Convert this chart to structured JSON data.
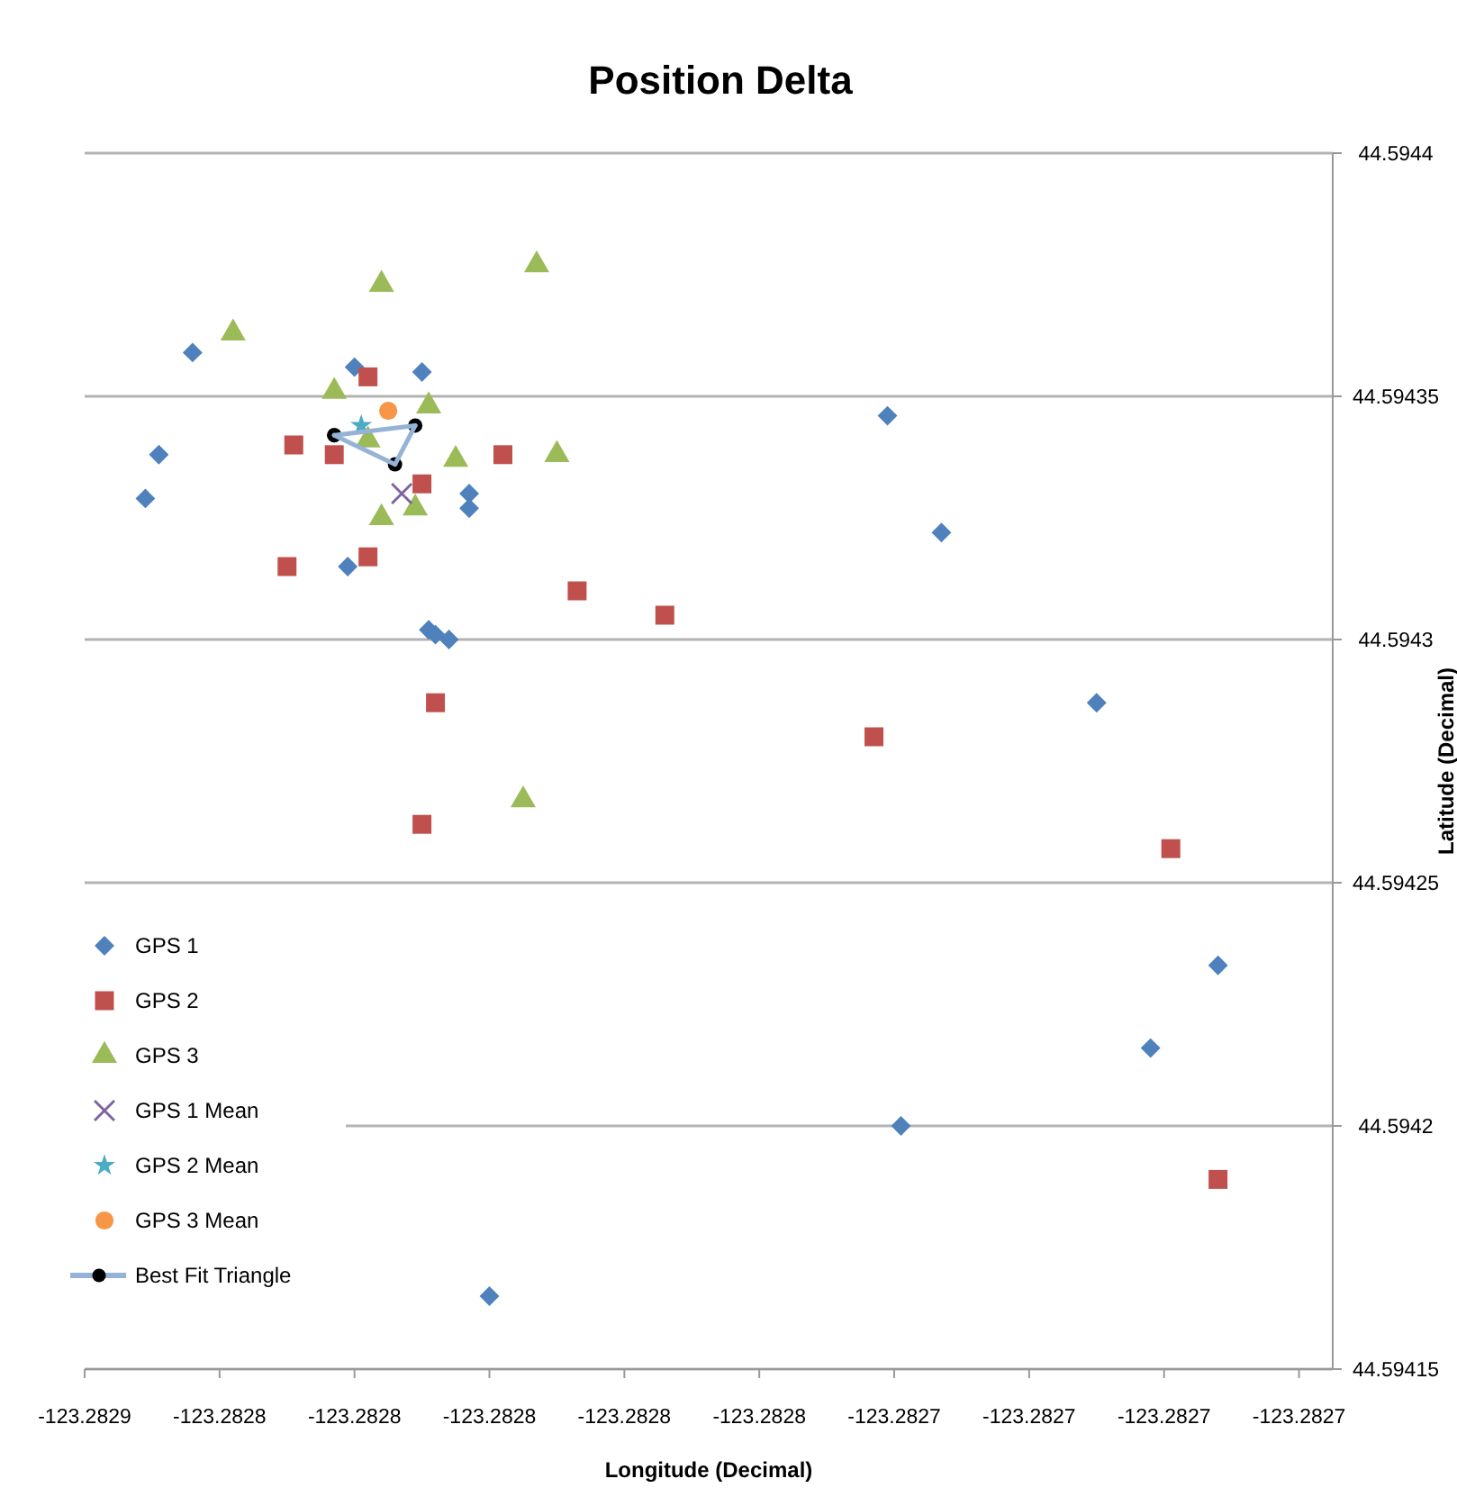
{
  "chart_data": {
    "type": "scatter",
    "title": "Position Delta",
    "xlabel": "Longitude (Decimal)",
    "ylabel": "Latitude (Decimal)",
    "xlim": [
      -123.28286,
      -123.282675
    ],
    "xticks": [
      {
        "value": -123.28286,
        "label": "-123.2829"
      },
      {
        "value": -123.28284,
        "label": "-123.2828"
      },
      {
        "value": -123.28282,
        "label": "-123.2828"
      },
      {
        "value": -123.2828,
        "label": "-123.2828"
      },
      {
        "value": -123.28278,
        "label": "-123.2828"
      },
      {
        "value": -123.28276,
        "label": "-123.2828"
      },
      {
        "value": -123.28274,
        "label": "-123.2827"
      },
      {
        "value": -123.28272,
        "label": "-123.2827"
      },
      {
        "value": -123.2827,
        "label": "-123.2827"
      },
      {
        "value": -123.28268,
        "label": "-123.2827"
      }
    ],
    "ylim": [
      44.59415,
      44.5944
    ],
    "yticks": [
      44.59415,
      44.5942,
      44.59425,
      44.5943,
      44.59435,
      44.5944
    ],
    "grid": "y",
    "legend": "left",
    "series": [
      {
        "name": "GPS 1",
        "color": "#4f81bd",
        "marker": "diamond",
        "x": [
          -123.282844,
          -123.282849,
          -123.282851,
          -123.28282,
          -123.28281,
          -123.282821,
          -123.282803,
          -123.282803,
          -123.282809,
          -123.282808,
          -123.282806,
          -123.282741,
          -123.282733,
          -123.28271,
          -123.282702,
          -123.282692,
          -123.282739,
          -123.2828
        ],
        "values": [
          44.594359,
          44.594338,
          44.594329,
          44.594356,
          44.594355,
          44.594315,
          44.59433,
          44.594327,
          44.594302,
          44.594301,
          44.5943,
          44.594346,
          44.594322,
          44.594287,
          44.594216,
          44.594233,
          44.5942,
          44.594165
        ]
      },
      {
        "name": "GPS 2",
        "color": "#c0504d",
        "marker": "square",
        "x": [
          -123.282818,
          -123.282829,
          -123.282823,
          -123.282798,
          -123.28281,
          -123.28283,
          -123.282818,
          -123.282787,
          -123.282774,
          -123.282808,
          -123.28281,
          -123.282743,
          -123.282699,
          -123.282692
        ],
        "values": [
          44.594354,
          44.59434,
          44.594338,
          44.594338,
          44.594332,
          44.594315,
          44.594317,
          44.59431,
          44.594305,
          44.594287,
          44.594262,
          44.59428,
          44.594257,
          44.594189
        ]
      },
      {
        "name": "GPS 3",
        "color": "#9bbb59",
        "marker": "triangle",
        "x": [
          -123.282816,
          -123.282793,
          -123.282838,
          -123.282823,
          -123.282809,
          -123.282818,
          -123.282805,
          -123.28279,
          -123.282816,
          -123.282811,
          -123.282795
        ],
        "values": [
          44.594373,
          44.594377,
          44.594363,
          44.594351,
          44.594348,
          44.594341,
          44.594337,
          44.594338,
          44.594325,
          44.594327,
          44.594267
        ]
      },
      {
        "name": "GPS 1 Mean",
        "color": "#8064a2",
        "marker": "cross",
        "x": [
          -123.282813
        ],
        "values": [
          44.59433
        ]
      },
      {
        "name": "GPS 2 Mean",
        "color": "#4bacc6",
        "marker": "star",
        "x": [
          -123.282819
        ],
        "values": [
          44.594344
        ]
      },
      {
        "name": "GPS 3 Mean",
        "color": "#f79646",
        "marker": "circle",
        "x": [
          -123.282815
        ],
        "values": [
          44.594347
        ]
      },
      {
        "name": "Best Fit Triangle",
        "type": "line",
        "color": "#95b3d7",
        "marker": "circle",
        "x": [
          -123.282823,
          -123.282811,
          -123.282814,
          -123.282823
        ],
        "values": [
          44.594342,
          44.594344,
          44.594336,
          44.594342
        ]
      }
    ]
  }
}
